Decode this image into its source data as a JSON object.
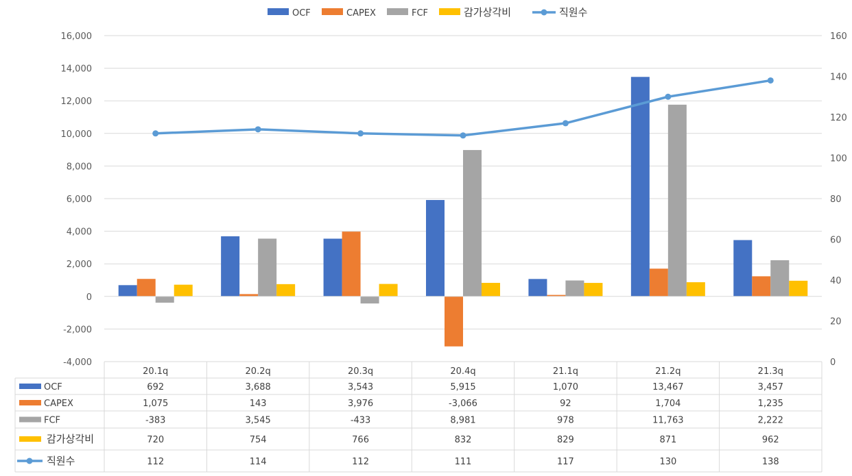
{
  "colors": {
    "ocf": "#4472C4",
    "capex": "#ED7D31",
    "fcf": "#A5A5A5",
    "depreciation": "#FFC000",
    "employees": "#5B9BD5",
    "negative_tick": "#C00000"
  },
  "chart_data": {
    "type": "bar",
    "categories": [
      "20.1q",
      "20.2q",
      "20.3q",
      "20.4q",
      "21.1q",
      "21.2q",
      "21.3q"
    ],
    "series": [
      {
        "name": "OCF",
        "type": "bar",
        "axis": "left",
        "color_key": "ocf",
        "values": [
          692,
          3688,
          3543,
          5915,
          1070,
          13467,
          3457
        ]
      },
      {
        "name": "CAPEX",
        "type": "bar",
        "axis": "left",
        "color_key": "capex",
        "values": [
          1075,
          143,
          3976,
          -3066,
          92,
          1704,
          1235
        ]
      },
      {
        "name": "FCF",
        "type": "bar",
        "axis": "left",
        "color_key": "fcf",
        "values": [
          -383,
          3545,
          -433,
          8981,
          978,
          11763,
          2222
        ]
      },
      {
        "name": "감가상각비",
        "type": "bar",
        "axis": "left",
        "color_key": "depreciation",
        "values": [
          720,
          754,
          766,
          832,
          829,
          871,
          962
        ]
      },
      {
        "name": "직원수",
        "type": "line",
        "axis": "right",
        "color_key": "employees",
        "values": [
          112,
          114,
          112,
          111,
          117,
          130,
          138
        ]
      }
    ],
    "y_left": {
      "min": -4000,
      "max": 16000,
      "ticks": [
        -4000,
        -2000,
        0,
        2000,
        4000,
        6000,
        8000,
        10000,
        12000,
        14000,
        16000
      ],
      "tick_labels": [
        "-4,000",
        "-2,000",
        "0",
        "2,000",
        "4,000",
        "6,000",
        "8,000",
        "10,000",
        "12,000",
        "14,000",
        "16,000"
      ]
    },
    "y_right": {
      "min": 0,
      "max": 160,
      "ticks": [
        0,
        20,
        40,
        60,
        80,
        100,
        120,
        140,
        160
      ],
      "tick_labels": [
        "0",
        "20",
        "40",
        "60",
        "80",
        "100",
        "120",
        "140",
        "160"
      ]
    },
    "grid": true,
    "legend_position": "top",
    "data_table": {
      "rows": [
        {
          "series": "OCF",
          "cells": [
            "692",
            "3,688",
            "3,543",
            "5,915",
            "1,070",
            "13,467",
            "3,457"
          ]
        },
        {
          "series": "CAPEX",
          "cells": [
            "1,075",
            "143",
            "3,976",
            "-3,066",
            "92",
            "1,704",
            "1,235"
          ]
        },
        {
          "series": "FCF",
          "cells": [
            "-383",
            "3,545",
            "-433",
            "8,981",
            "978",
            "11,763",
            "2,222"
          ]
        },
        {
          "series": "감가상각비",
          "cells": [
            "720",
            "754",
            "766",
            "832",
            "829",
            "871",
            "962"
          ]
        },
        {
          "series": "직원수",
          "cells": [
            "112",
            "114",
            "112",
            "111",
            "117",
            "130",
            "138"
          ]
        }
      ]
    }
  }
}
